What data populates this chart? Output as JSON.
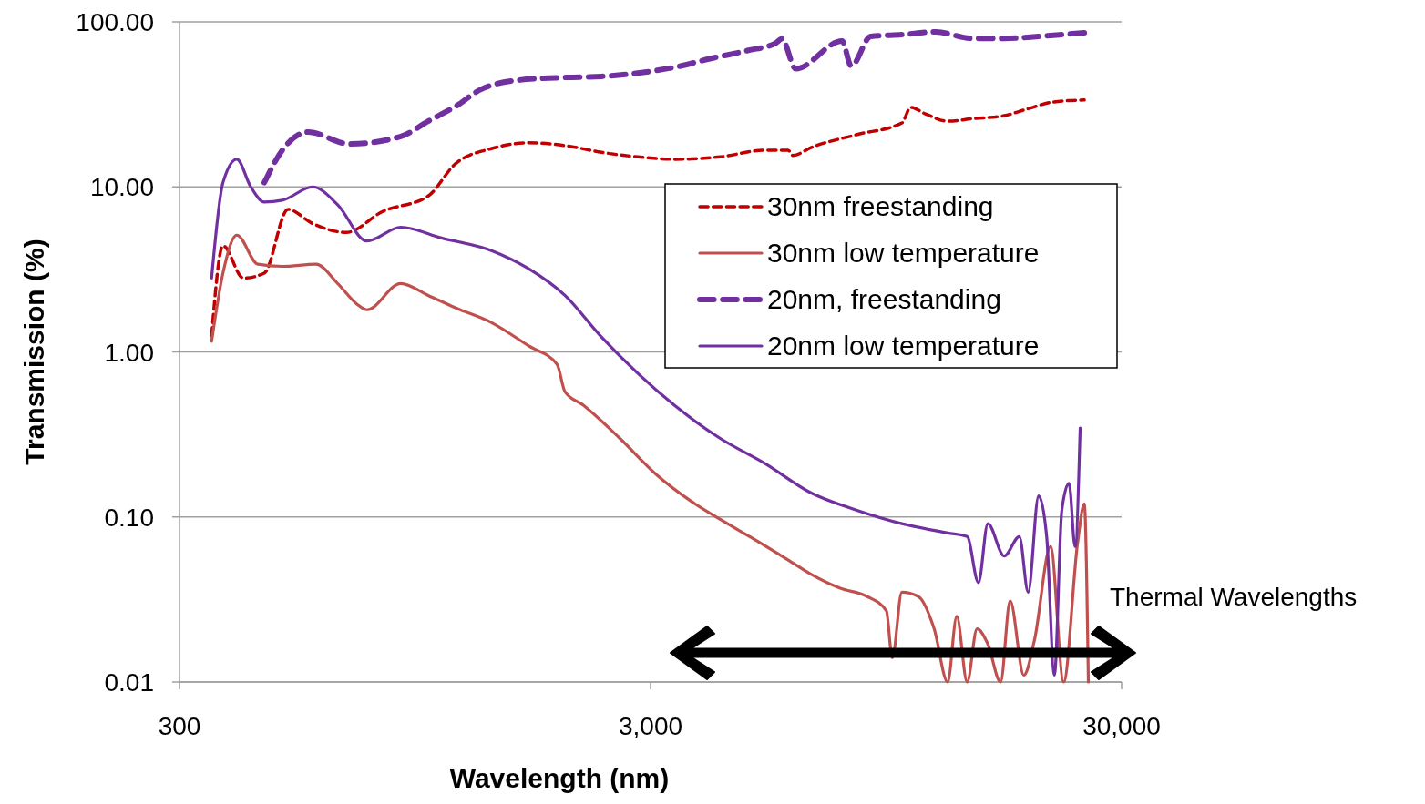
{
  "chart_data": {
    "type": "line",
    "xlabel": "Wavelength (nm)",
    "ylabel": "Transmission (%)",
    "log": "xy",
    "xlim": [
      300,
      30000
    ],
    "xticks": [
      {
        "value": 300,
        "label": "300"
      },
      {
        "value": 3000,
        "label": "3,000"
      },
      {
        "value": 30000,
        "label": "30,000"
      }
    ],
    "ylim": [
      0.01,
      100
    ],
    "yticks": [
      {
        "value": 0.01,
        "label": "0.01"
      },
      {
        "value": 0.1,
        "label": "0.10"
      },
      {
        "value": 1,
        "label": "1.00"
      },
      {
        "value": 10,
        "label": "10.00"
      },
      {
        "value": 100,
        "label": "100.00"
      }
    ],
    "grid": "y",
    "legend": "top right",
    "annotations": [
      "Thermal Wavelengths"
    ],
    "series": [
      {
        "name": "30nm freestanding",
        "color": "#c00000",
        "line_style": "dashed",
        "x": [
          351,
          371,
          410,
          454,
          510,
          575,
          678,
          810,
          1012,
          1156,
          1382,
          1651,
          1974,
          2360,
          2820,
          3370,
          4210,
          5260,
          5870,
          6020,
          6570,
          8200,
          10250,
          10700,
          11500,
          12820,
          14500,
          16900,
          18800,
          21500,
          25000
        ],
        "values": [
          1.25,
          4.4,
          2.8,
          3.0,
          7.3,
          6.0,
          5.3,
          7.1,
          8.8,
          13.8,
          17.1,
          18.5,
          17.8,
          16.2,
          15.2,
          14.7,
          15.2,
          16.7,
          16.7,
          15.5,
          17.3,
          20.7,
          24.4,
          30.3,
          27.7,
          25,
          25.9,
          27,
          29.5,
          32.7,
          33.6
        ]
      },
      {
        "name": "30nm low temperature",
        "color": "#c0504d",
        "line_style": "solid",
        "x": [
          351,
          371,
          397,
          440,
          496,
          585,
          650,
          714,
          750,
          885,
          1012,
          1156,
          1382,
          1651,
          1900,
          1974,
          2160,
          2580,
          3090,
          3650,
          4210,
          4910,
          5870,
          6570,
          7580,
          8640,
          9500,
          9780,
          10250,
          11100,
          12000,
          12820,
          13400,
          14100,
          14800,
          15600,
          16600,
          17400,
          18600,
          19600,
          21200,
          22600,
          24200,
          25000,
          25500
        ],
        "values": [
          1.16,
          3.0,
          5.1,
          3.4,
          3.3,
          3.4,
          2.6,
          1.95,
          1.8,
          2.6,
          2.2,
          1.85,
          1.5,
          1.09,
          0.84,
          0.575,
          0.475,
          0.3,
          0.18,
          0.125,
          0.097,
          0.075,
          0.055,
          0.045,
          0.037,
          0.033,
          0.027,
          0.014,
          0.035,
          0.033,
          0.021,
          0.01,
          0.025,
          0.01,
          0.021,
          0.017,
          0.01,
          0.031,
          0.011,
          0.018,
          0.066,
          0.01,
          0.07,
          0.12,
          0.01
        ]
      },
      {
        "name": "20nm, freestanding",
        "color": "#7030a0",
        "line_style": "dashed",
        "x": [
          454,
          496,
          562,
          690,
          885,
          1012,
          1156,
          1310,
          1580,
          1974,
          2360,
          2820,
          3370,
          4030,
          4820,
          5540,
          5700,
          6100,
          7650,
          8000,
          8800,
          10250,
          12100,
          14400,
          16900,
          20000,
          23600,
          25000
        ],
        "values": [
          10.6,
          16.7,
          21.5,
          18.2,
          20.2,
          25,
          30.7,
          39,
          44.4,
          46,
          46.7,
          49,
          53,
          60,
          67,
          74.6,
          79,
          52,
          76.6,
          54,
          81.6,
          83.7,
          87,
          79.4,
          79.4,
          81.6,
          84.8,
          85.9
        ]
      },
      {
        "name": "20nm low temperature",
        "color": "#7030a0",
        "line_style": "solid",
        "x": [
          351,
          371,
          397,
          425,
          454,
          496,
          575,
          650,
          750,
          885,
          1080,
          1382,
          1651,
          1974,
          2360,
          2820,
          3370,
          4210,
          5260,
          6570,
          8200,
          10250,
          12820,
          14100,
          14900,
          15600,
          16900,
          18200,
          19000,
          20000,
          20800,
          21600,
          22400,
          23200,
          23900,
          24500
        ],
        "values": [
          2.8,
          10.6,
          14.7,
          10.0,
          8.1,
          8.3,
          10.0,
          7.8,
          4.7,
          5.7,
          4.9,
          4.1,
          3.2,
          2.2,
          1.23,
          0.74,
          0.475,
          0.3,
          0.21,
          0.14,
          0.11,
          0.091,
          0.08,
          0.076,
          0.04,
          0.091,
          0.058,
          0.076,
          0.035,
          0.134,
          0.076,
          0.011,
          0.11,
          0.16,
          0.066,
          0.346
        ]
      }
    ]
  }
}
